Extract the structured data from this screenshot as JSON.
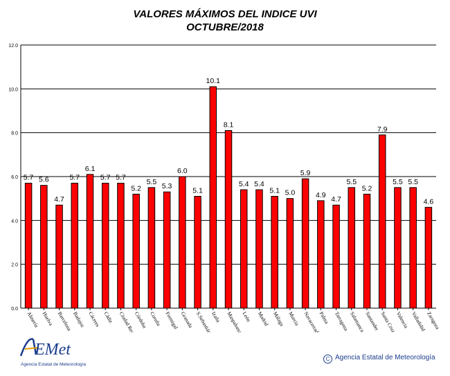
{
  "chart_data": {
    "type": "bar",
    "title": "VALORES MÁXIMOS DEL INDICE UVI",
    "subtitle": "OCTUBRE/2018",
    "categories": [
      "Almería",
      "Huelva",
      "Barcelona",
      "Badajoz",
      "Cáceres",
      "Cádiz",
      "Ciudad Real",
      "Córdoba",
      "Coruña",
      "Formigal",
      "Granada",
      "S.Sebastián",
      "Izaña",
      "Maspalomas",
      "León",
      "Madrid",
      "Málaga",
      "Murcia",
      "Navacerrada",
      "Palma",
      "Tarragona",
      "Salamanca",
      "Santander",
      "Santa Cruz",
      "Valencia",
      "Valladolid",
      "Zaragoza"
    ],
    "values": [
      5.7,
      5.6,
      4.7,
      5.7,
      6.1,
      5.7,
      5.7,
      5.2,
      5.5,
      5.3,
      6.0,
      5.1,
      10.1,
      8.1,
      5.4,
      5.4,
      5.1,
      5.0,
      5.9,
      4.9,
      4.7,
      5.5,
      5.2,
      7.9,
      5.5,
      5.5,
      4.6
    ],
    "value_labels": [
      "5.7",
      "5.6",
      "4.7",
      "5.7",
      "6.1",
      "5.7",
      "5.7",
      "5.2",
      "5.5",
      "5.3",
      "6.0",
      "5.1",
      "10.1",
      "8.1",
      "5.4",
      "5.4",
      "5.1",
      "5.0",
      "5.9",
      "4.9",
      "4.7",
      "5.5",
      "5.2",
      "7.9",
      "5.5",
      "5.5",
      "4.6"
    ],
    "yticks": [
      "0.0",
      "2.0",
      "4.0",
      "6.0",
      "8.0",
      "10.0",
      "12.0"
    ],
    "ylim": [
      0,
      12
    ],
    "grid": true,
    "bar_color": "#ff0000",
    "bar_edge_color": "#000000"
  },
  "footer": {
    "logo_text": "AEMet",
    "logo_subtitle": "Agencia Estatal de Meteorología",
    "copyright_symbol": "C",
    "copyright": "Agencia Estatal de Meteorología"
  }
}
